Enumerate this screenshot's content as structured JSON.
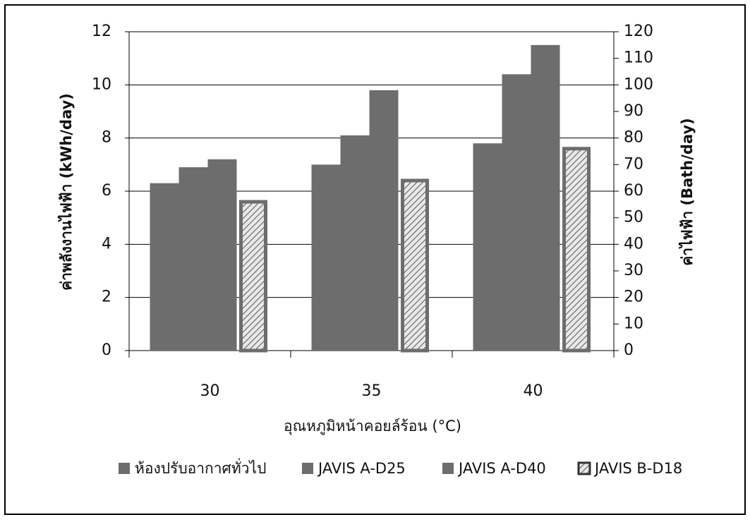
{
  "chart_data": {
    "type": "bar",
    "categories": [
      "30",
      "35",
      "40"
    ],
    "series": [
      {
        "name": "ห้องปรับอากาศทั่วไป",
        "color": "#6d6d6d",
        "values": [
          6.3,
          7.0,
          7.8
        ]
      },
      {
        "name": "JAVIS A-D25",
        "color": "#6d6d6d",
        "values": [
          6.9,
          8.1,
          10.4
        ]
      },
      {
        "name": "JAVIS A-D40",
        "color": "#6d6d6d",
        "values": [
          7.2,
          9.8,
          11.5
        ]
      },
      {
        "name": "JAVIS B-D18",
        "color": "#6d6d6d",
        "values": [
          5.6,
          6.4,
          7.6
        ],
        "hatched": true
      }
    ],
    "ylim": [
      0,
      12
    ],
    "yticks": [
      0,
      2,
      4,
      6,
      8,
      10,
      12
    ],
    "y2lim": [
      0,
      120
    ],
    "y2ticks": [
      0,
      10,
      20,
      30,
      40,
      50,
      60,
      70,
      80,
      90,
      100,
      110,
      120
    ],
    "ylabel": "ค่าพลังงานไฟฟ้า (kWh/day)",
    "y2label": "ค่าไฟฟ้า (Bath/day)",
    "xlabel": "อุณหภูมิหน้าคอยล์ร้อน (°C)",
    "grid": true
  }
}
